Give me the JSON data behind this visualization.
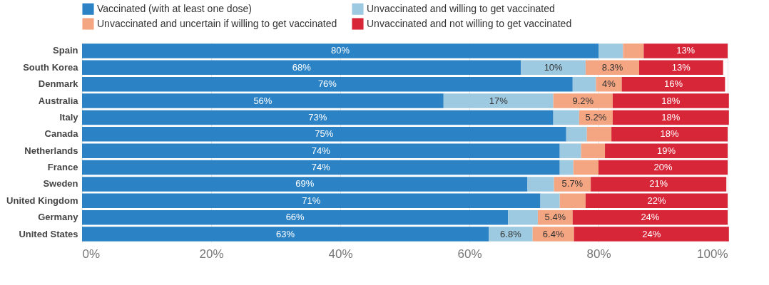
{
  "chart_data": {
    "type": "bar",
    "orientation": "horizontal",
    "stacked": true,
    "categories": [
      "Spain",
      "South Korea",
      "Denmark",
      "Australia",
      "Italy",
      "Canada",
      "Netherlands",
      "France",
      "Sweden",
      "United Kingdom",
      "Germany",
      "United States"
    ],
    "series": [
      {
        "name": "Vaccinated (with at least one dose)",
        "color": "#2b83c6",
        "values": [
          80,
          68,
          76,
          56,
          73,
          75,
          74,
          74,
          69,
          71,
          66,
          63
        ],
        "value_labels": [
          "80%",
          "68%",
          "76%",
          "56%",
          "73%",
          "75%",
          "74%",
          "74%",
          "69%",
          "71%",
          "66%",
          "63%"
        ]
      },
      {
        "name": "Unvaccinated and willing to get vaccinated",
        "color": "#9ecae1",
        "values": [
          3.8,
          10,
          3.6,
          17,
          4.0,
          3.2,
          3.3,
          2.1,
          4.1,
          3,
          4.6,
          6.8
        ],
        "value_labels": [
          null,
          "10%",
          null,
          "17%",
          null,
          null,
          null,
          null,
          null,
          null,
          null,
          "6.8%"
        ]
      },
      {
        "name": "Unvaccinated and uncertain if willing to get vaccinated",
        "color": "#f4a582",
        "values": [
          3.2,
          8.3,
          4,
          9.2,
          5.2,
          3.8,
          3.7,
          3.9,
          5.7,
          4,
          5.4,
          6.4
        ],
        "value_labels": [
          null,
          "8.3%",
          "4%",
          "9.2%",
          "5.2%",
          null,
          null,
          null,
          "5.7%",
          null,
          "5.4%",
          "6.4%"
        ]
      },
      {
        "name": "Unvaccinated and not willing to get vaccinated",
        "color": "#d62638",
        "values": [
          13,
          13,
          16,
          18,
          18,
          18,
          19,
          20,
          21,
          22,
          24,
          24
        ],
        "value_labels": [
          "13%",
          "13%",
          "16%",
          "18%",
          "18%",
          "18%",
          "19%",
          "20%",
          "21%",
          "22%",
          "24%",
          "24%"
        ]
      }
    ],
    "xlim": [
      0,
      100
    ],
    "xticks": [
      {
        "value": 0,
        "label": "0%"
      },
      {
        "value": 20,
        "label": "20%"
      },
      {
        "value": 40,
        "label": "40%"
      },
      {
        "value": 60,
        "label": "60%"
      },
      {
        "value": 80,
        "label": "80%"
      },
      {
        "value": 100,
        "label": "100%"
      }
    ],
    "grid": "x",
    "legend": "top left"
  }
}
